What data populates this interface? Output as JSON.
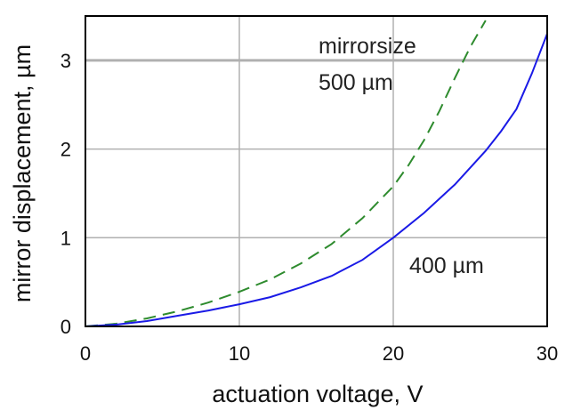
{
  "chart_data": {
    "type": "line",
    "title": "",
    "xlabel": "actuation voltage, V",
    "ylabel": "mirror displacement, µm",
    "xlim": [
      0,
      30
    ],
    "ylim": [
      0,
      3.5
    ],
    "x_ticks": [
      "0",
      "10",
      "20",
      "30"
    ],
    "y_ticks": [
      "0",
      "1",
      "2",
      "3"
    ],
    "grid": true,
    "colors": {
      "series_500": "#2e8b2e",
      "series_400": "#1a1ae6",
      "grid": "#b0b0b0"
    },
    "annotations": [
      {
        "text": "mirrorsize"
      },
      {
        "text": "500 µm"
      },
      {
        "text": "400 µm"
      }
    ],
    "series": [
      {
        "style": "dashed",
        "x": [
          0,
          2,
          4,
          6,
          8,
          10,
          12,
          14,
          16,
          18,
          20,
          21,
          22,
          23,
          24,
          25,
          26
        ],
        "y": [
          0,
          0.03,
          0.09,
          0.17,
          0.27,
          0.39,
          0.53,
          0.71,
          0.93,
          1.22,
          1.58,
          1.82,
          2.1,
          2.43,
          2.8,
          3.15,
          3.45
        ]
      },
      {
        "style": "solid",
        "x": [
          0,
          2,
          4,
          6,
          8,
          10,
          12,
          14,
          16,
          18,
          20,
          22,
          24,
          26,
          27,
          28,
          29,
          30
        ],
        "y": [
          0,
          0.02,
          0.06,
          0.12,
          0.18,
          0.25,
          0.33,
          0.44,
          0.57,
          0.75,
          1.0,
          1.28,
          1.6,
          1.98,
          2.2,
          2.45,
          2.85,
          3.3
        ]
      }
    ]
  }
}
